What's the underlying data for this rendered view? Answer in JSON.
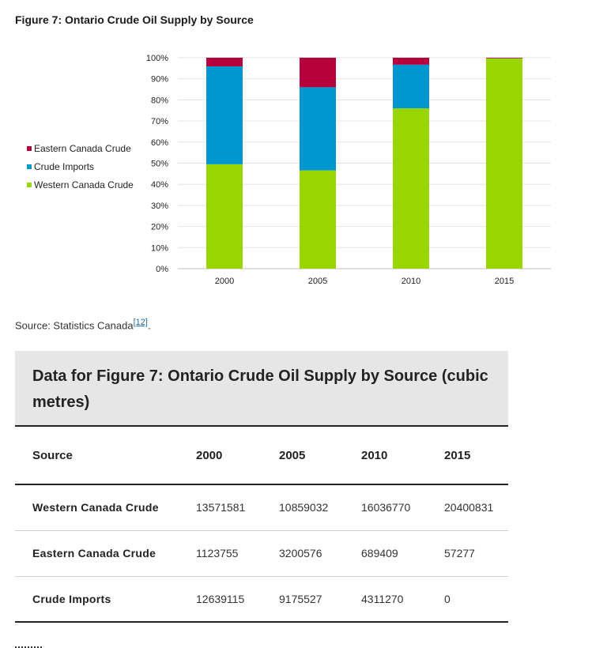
{
  "figure": {
    "title": "Figure 7: Ontario Crude Oil Supply by Source",
    "source_label": "Source: Statistics Canada",
    "source_ref": "[12]",
    "source_trail": "."
  },
  "chart_data": {
    "type": "bar",
    "stacked": true,
    "categories": [
      "2000",
      "2005",
      "2010",
      "2015"
    ],
    "series": [
      {
        "name": "Western Canada Crude",
        "color": "#99d500",
        "values": [
          49.5,
          46.6,
          76.0,
          99.7
        ]
      },
      {
        "name": "Crude Imports",
        "color": "#0096cf",
        "values": [
          46.4,
          39.4,
          20.7,
          0.0
        ]
      },
      {
        "name": "Eastern Canada Crude",
        "color": "#b5003c",
        "values": [
          4.1,
          14.0,
          3.3,
          0.3
        ]
      }
    ],
    "yticks": [
      "0%",
      "10%",
      "20%",
      "30%",
      "40%",
      "50%",
      "60%",
      "70%",
      "80%",
      "90%",
      "100%"
    ],
    "ylim": [
      0,
      100
    ],
    "grid": true,
    "legend_position": "left",
    "legend_order": [
      "Eastern Canada Crude",
      "Crude Imports",
      "Western Canada Crude"
    ]
  },
  "table": {
    "caption": "Data for Figure 7: Ontario Crude Oil Supply by Source (cubic metres)",
    "headers": [
      "Source",
      "2000",
      "2005",
      "2010",
      "2015"
    ],
    "rows": [
      [
        "Western Canada Crude",
        "13571581",
        "10859032",
        "16036770",
        "20400831"
      ],
      [
        "Eastern Canada Crude",
        "1123755",
        "3200576",
        "689409",
        "57277"
      ],
      [
        "Crude Imports",
        "12639115",
        "9175527",
        "4311270",
        "0"
      ]
    ]
  }
}
